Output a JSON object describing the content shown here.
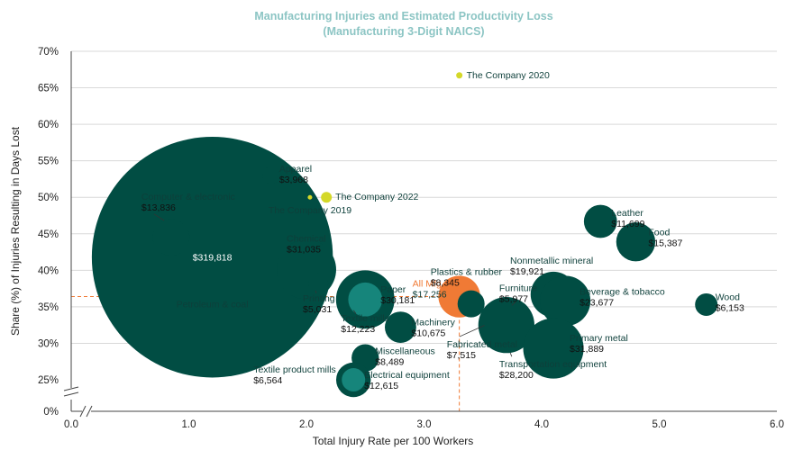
{
  "chart_data": {
    "type": "scatter",
    "title": "Manufacturing Injuries and Estimated Productivity Loss",
    "subtitle": "(Manufacturing 3-Digit NAICS)",
    "xlabel": "Total Injury Rate per 100 Workers",
    "ylabel": "Share (%) of Injuries Resulting in Days Lost",
    "xlim": [
      0,
      6
    ],
    "ylim": [
      24,
      70
    ],
    "x_ticks": [
      "0.0",
      "1.0",
      "2.0",
      "3.0",
      "4.0",
      "5.0",
      "6.0"
    ],
    "y_ticks": [
      "0%",
      "25%",
      "30%",
      "35%",
      "40%",
      "45%",
      "50%",
      "55%",
      "60%",
      "65%",
      "70%"
    ],
    "axis_break": true,
    "grid": "horizontal",
    "colors": {
      "industry": "#014d43",
      "inner_highlight": "#16857b",
      "all_mfg": "#f07a35",
      "company": "#d4d829",
      "title": "#8cc5c4"
    },
    "reference_lines": {
      "x": 3.3,
      "y": 36.4,
      "color": "#f07a35"
    },
    "points": [
      {
        "name": "Petroleum & coal",
        "value": "$319,818",
        "x": 1.2,
        "y": 41.8,
        "loss": 319818,
        "kind": "industry"
      },
      {
        "name": "Computer & electronic",
        "value": "$13,836",
        "x": 0.85,
        "y": 44.5,
        "loss": 13836,
        "kind": "industry"
      },
      {
        "name": "Apparel",
        "value": "$3,968",
        "x": 1.7,
        "y": 53.0,
        "loss": 3968,
        "kind": "industry"
      },
      {
        "name": "Chemical",
        "value": "$31,035",
        "x": 2.0,
        "y": 40.1,
        "loss": 31035,
        "kind": "industry"
      },
      {
        "name": "Printing",
        "value": "$5,031",
        "x": 2.1,
        "y": 38.2,
        "loss": 5031,
        "kind": "industry"
      },
      {
        "name": "Paper",
        "value": "$30,181",
        "x": 2.5,
        "y": 36.0,
        "loss": 30181,
        "kind": "industry"
      },
      {
        "name": "Textile mills",
        "value": "$12,223",
        "x": 2.5,
        "y": 36.0,
        "loss": 12223,
        "kind": "inner"
      },
      {
        "name": "Machinery",
        "value": "$10,675",
        "x": 2.8,
        "y": 32.2,
        "loss": 10675,
        "kind": "industry"
      },
      {
        "name": "Miscellaneous",
        "value": "$8,489",
        "x": 2.5,
        "y": 28.0,
        "loss": 8489,
        "kind": "industry"
      },
      {
        "name": "Electrical equipment",
        "value": "$12,615",
        "x": 2.4,
        "y": 25.0,
        "loss": 12615,
        "kind": "industry"
      },
      {
        "name": "Textile product mills",
        "value": "$6,564",
        "x": 2.4,
        "y": 25.0,
        "loss": 6564,
        "kind": "inner"
      },
      {
        "name": "All Mfg.",
        "value": "$17,256",
        "x": 3.3,
        "y": 36.4,
        "loss": 17256,
        "kind": "all"
      },
      {
        "name": "Plastics & rubber",
        "value": "$8,345",
        "x": 3.4,
        "y": 35.4,
        "loss": 8345,
        "kind": "industry"
      },
      {
        "name": "Fabricated metal",
        "value": "$7,515",
        "x": 3.6,
        "y": 33.5,
        "loss": 7515,
        "kind": "industry"
      },
      {
        "name": "Furniture",
        "value": "$5,977",
        "x": 3.8,
        "y": 34.2,
        "loss": 5977,
        "kind": "industry"
      },
      {
        "name": "Transportation equipment",
        "value": "$28,200",
        "x": 3.7,
        "y": 32.5,
        "loss": 28200,
        "kind": "industry"
      },
      {
        "name": "Nonmetallic mineral",
        "value": "$19,921",
        "x": 4.1,
        "y": 36.7,
        "loss": 19921,
        "kind": "industry"
      },
      {
        "name": "Beverage & tobacco",
        "value": "$23,677",
        "x": 4.2,
        "y": 35.8,
        "loss": 23677,
        "kind": "industry"
      },
      {
        "name": "Primary metal",
        "value": "$31,889",
        "x": 4.1,
        "y": 29.3,
        "loss": 31889,
        "kind": "industry"
      },
      {
        "name": "Leather",
        "value": "$11,699",
        "x": 4.5,
        "y": 46.7,
        "loss": 11699,
        "kind": "industry"
      },
      {
        "name": "Food",
        "value": "$15,387",
        "x": 4.8,
        "y": 43.9,
        "loss": 15387,
        "kind": "industry"
      },
      {
        "name": "Wood",
        "value": "$6,153",
        "x": 5.4,
        "y": 35.3,
        "loss": 6153,
        "kind": "industry"
      },
      {
        "name": "The Company 2020",
        "value": "",
        "x": 3.3,
        "y": 66.7,
        "loss": 0,
        "kind": "company"
      },
      {
        "name": "The Company 2022",
        "value": "",
        "x": 2.17,
        "y": 50.0,
        "loss": 0,
        "kind": "company"
      },
      {
        "name": "The Company 2019",
        "value": "",
        "x": 2.03,
        "y": 50.0,
        "loss": 0,
        "kind": "company"
      }
    ]
  }
}
